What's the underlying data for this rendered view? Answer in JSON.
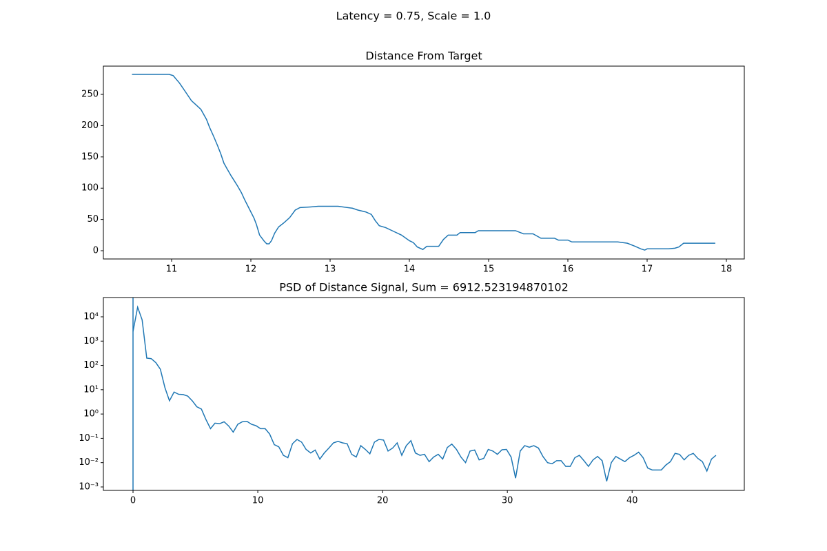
{
  "title": "Latency = 0.75, Scale = 1.0",
  "chart_data": [
    {
      "type": "line",
      "title": "Distance From Target",
      "x": [
        10.5,
        10.97,
        11.02,
        11.1,
        11.17,
        11.25,
        11.31,
        11.37,
        11.44,
        11.48,
        11.53,
        11.58,
        11.62,
        11.66,
        11.7,
        11.75,
        11.79,
        11.83,
        11.88,
        11.92,
        11.96,
        12.0,
        12.04,
        12.07,
        12.11,
        12.17,
        12.2,
        12.23,
        12.26,
        12.3,
        12.35,
        12.42,
        12.49,
        12.56,
        12.62,
        12.75,
        12.85,
        13.1,
        13.28,
        13.35,
        13.45,
        13.52,
        13.57,
        13.62,
        13.7,
        13.8,
        13.9,
        14.0,
        14.05,
        14.1,
        14.17,
        14.22,
        14.37,
        14.43,
        14.49,
        14.6,
        14.64,
        14.83,
        14.87,
        15.34,
        15.44,
        15.56,
        15.66,
        15.83,
        15.88,
        16.0,
        16.05,
        16.63,
        16.75,
        16.85,
        16.92,
        16.97,
        17.0,
        17.27,
        17.35,
        17.4,
        17.46,
        17.86
      ],
      "series": [
        {
          "color": "#1f77b4",
          "values": [
            282,
            282,
            280,
            268,
            255,
            240,
            233,
            226,
            210,
            197,
            183,
            168,
            155,
            140,
            131,
            120,
            112,
            104,
            93,
            82,
            72,
            62,
            52,
            42,
            25,
            15,
            11,
            11,
            16,
            28,
            38,
            45,
            53,
            65,
            69,
            70,
            71,
            71,
            68,
            65,
            62,
            58,
            48,
            40,
            37,
            31,
            25,
            16,
            13,
            6,
            2,
            7,
            7,
            18,
            25,
            25,
            29,
            29,
            32,
            32,
            27,
            27,
            20,
            20,
            17,
            17,
            14,
            14,
            12,
            7,
            3,
            1,
            3,
            3,
            4,
            6,
            12,
            12
          ]
        }
      ],
      "xlim": [
        10.139,
        18.226
      ],
      "ylim": [
        -13.2,
        295.2
      ],
      "xticks": [
        11,
        12,
        13,
        14,
        15,
        16,
        17,
        18
      ],
      "yticks": [
        0,
        50,
        100,
        150,
        200,
        250
      ],
      "log_y": false
    },
    {
      "type": "line",
      "title": "PSD of Distance Signal, Sum = 6912.523194870102",
      "x": [
        0,
        0.37,
        0.73,
        1.1,
        1.46,
        1.83,
        2.19,
        2.56,
        2.92,
        3.29,
        3.65,
        4.02,
        4.38,
        4.75,
        5.11,
        5.48,
        5.84,
        6.21,
        6.57,
        6.94,
        7.3,
        7.67,
        8.03,
        8.4,
        8.76,
        9.13,
        9.49,
        9.86,
        10.22,
        10.59,
        10.95,
        11.32,
        11.68,
        12.05,
        12.41,
        12.78,
        13.14,
        13.51,
        13.87,
        14.24,
        14.6,
        14.97,
        15.33,
        15.7,
        16.06,
        16.43,
        16.79,
        17.16,
        17.52,
        17.89,
        18.25,
        18.62,
        18.98,
        19.35,
        19.71,
        20.08,
        20.44,
        20.81,
        21.17,
        21.54,
        21.9,
        22.27,
        22.63,
        23.0,
        23.36,
        23.73,
        24.09,
        24.46,
        24.82,
        25.19,
        25.55,
        25.92,
        26.28,
        26.65,
        27.01,
        27.38,
        27.74,
        28.11,
        28.47,
        28.84,
        29.2,
        29.57,
        29.93,
        30.3,
        30.66,
        31.03,
        31.39,
        31.76,
        32.12,
        32.49,
        32.85,
        33.22,
        33.58,
        33.95,
        34.31,
        34.68,
        35.04,
        35.41,
        35.77,
        36.14,
        36.5,
        36.87,
        37.23,
        37.6,
        37.96,
        38.33,
        38.69,
        39.06,
        39.42,
        39.79,
        40.15,
        40.52,
        40.88,
        41.25,
        41.61,
        41.98,
        42.34,
        42.71,
        43.07,
        43.44,
        43.8,
        44.17,
        44.53,
        44.9,
        45.26,
        45.63,
        45.99,
        46.36,
        46.72
      ],
      "series": [
        {
          "color": "#1f77b4",
          "values": [
            2500,
            25000,
            7500,
            200,
            190,
            130,
            70,
            12,
            3.5,
            8,
            6.5,
            6.3,
            5.5,
            3.5,
            2.0,
            1.6,
            0.6,
            0.25,
            0.42,
            0.4,
            0.48,
            0.32,
            0.18,
            0.38,
            0.48,
            0.5,
            0.38,
            0.33,
            0.25,
            0.25,
            0.15,
            0.055,
            0.045,
            0.02,
            0.016,
            0.06,
            0.09,
            0.07,
            0.035,
            0.025,
            0.033,
            0.014,
            0.025,
            0.04,
            0.065,
            0.075,
            0.065,
            0.06,
            0.022,
            0.017,
            0.05,
            0.035,
            0.023,
            0.07,
            0.09,
            0.085,
            0.03,
            0.04,
            0.065,
            0.02,
            0.05,
            0.08,
            0.025,
            0.02,
            0.022,
            0.011,
            0.017,
            0.022,
            0.014,
            0.042,
            0.058,
            0.035,
            0.017,
            0.01,
            0.03,
            0.033,
            0.013,
            0.015,
            0.035,
            0.03,
            0.022,
            0.034,
            0.035,
            0.017,
            0.0023,
            0.03,
            0.05,
            0.043,
            0.05,
            0.04,
            0.018,
            0.01,
            0.009,
            0.012,
            0.012,
            0.007,
            0.007,
            0.016,
            0.02,
            0.012,
            0.007,
            0.013,
            0.018,
            0.012,
            0.0017,
            0.01,
            0.018,
            0.014,
            0.011,
            0.016,
            0.02,
            0.027,
            0.016,
            0.006,
            0.005,
            0.005,
            0.005,
            0.008,
            0.011,
            0.024,
            0.022,
            0.013,
            0.02,
            0.024,
            0.015,
            0.011,
            0.0045,
            0.014,
            0.02
          ]
        }
      ],
      "vline_x": 0,
      "xlim": [
        -2.376,
        48.99
      ],
      "ylim": [
        0.000721,
        62100
      ],
      "xticks": [
        0,
        10,
        20,
        30,
        40
      ],
      "yticks": [
        {
          "value": 0.001,
          "label": "10⁻³"
        },
        {
          "value": 0.01,
          "label": "10⁻²"
        },
        {
          "value": 0.1,
          "label": "10⁻¹"
        },
        {
          "value": 1,
          "label": "10⁰"
        },
        {
          "value": 10,
          "label": "10¹"
        },
        {
          "value": 100,
          "label": "10²"
        },
        {
          "value": 1000,
          "label": "10³"
        },
        {
          "value": 10000,
          "label": "10⁴"
        }
      ],
      "log_y": true
    }
  ]
}
